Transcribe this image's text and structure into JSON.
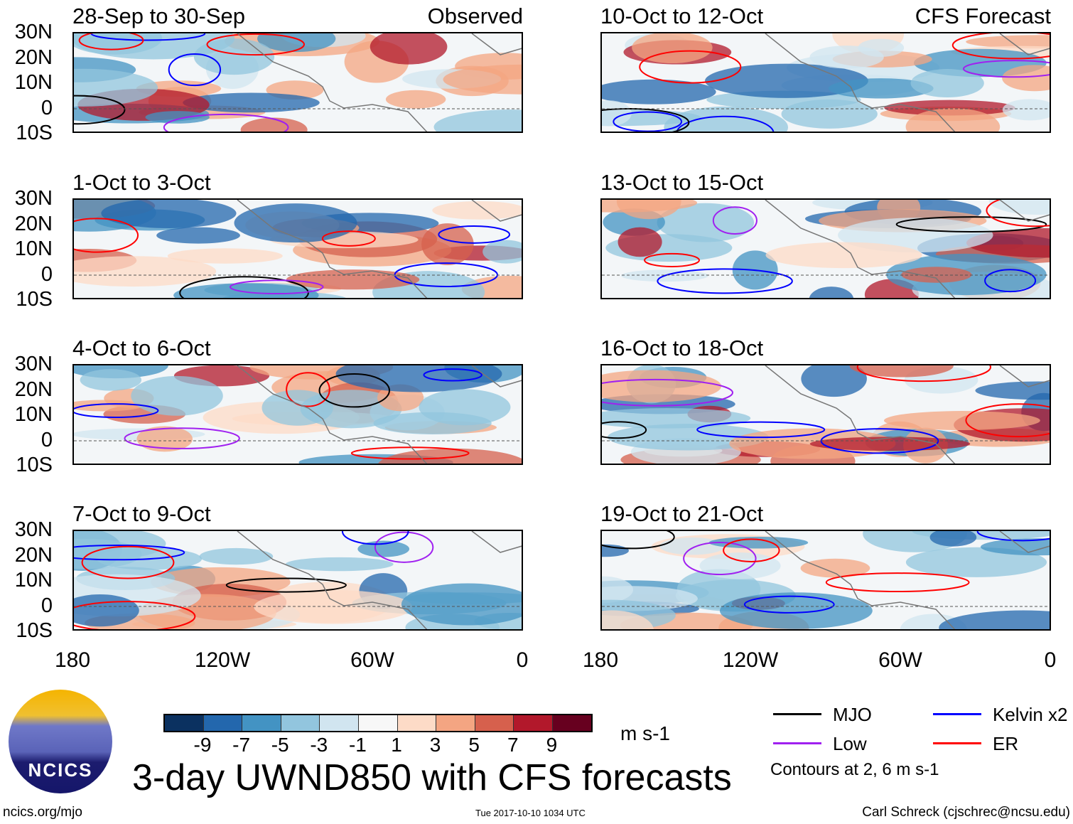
{
  "panels_observed": [
    {
      "title": "28-Sep to 30-Sep",
      "tag": "Observed"
    },
    {
      "title": "1-Oct to 3-Oct"
    },
    {
      "title": "4-Oct to 6-Oct"
    },
    {
      "title": "7-Oct to 9-Oct"
    }
  ],
  "panels_forecast": [
    {
      "title": "10-Oct to 12-Oct",
      "tag": "CFS Forecast"
    },
    {
      "title": "13-Oct to 15-Oct"
    },
    {
      "title": "16-Oct to 18-Oct"
    },
    {
      "title": "19-Oct to 21-Oct"
    }
  ],
  "lat_labels": [
    "30N",
    "20N",
    "10N",
    "0",
    "10S"
  ],
  "lon_labels": [
    "180",
    "120W",
    "60W",
    "0"
  ],
  "colorbar": {
    "colors": [
      "#0b3160",
      "#2367ad",
      "#4393c3",
      "#92c5de",
      "#d1e5f0",
      "#f7f7f7",
      "#fddbc7",
      "#f4a582",
      "#d6604d",
      "#b2182b",
      "#67001f"
    ],
    "ticks": [
      "-9",
      "-7",
      "-5",
      "-3",
      "-1",
      "1",
      "3",
      "5",
      "7",
      "9"
    ],
    "units": "m s-1"
  },
  "legend": {
    "items": [
      {
        "label": "MJO",
        "color": "#000000"
      },
      {
        "label": "Kelvin x2",
        "color": "#0000ff"
      },
      {
        "label": "Low",
        "color": "#a020f0"
      },
      {
        "label": "ER",
        "color": "#ff0000"
      }
    ],
    "note": "Contours at 2, 6 m s-1"
  },
  "logo_text": "NCICS",
  "title": "3-day UWND850 with CFS forecasts",
  "footer": {
    "left": "ncics.org/mjo",
    "center": "Tue 2017-10-10 1034 UTC",
    "right": "Carl Schreck (cjschrec@ncsu.edu)"
  }
}
